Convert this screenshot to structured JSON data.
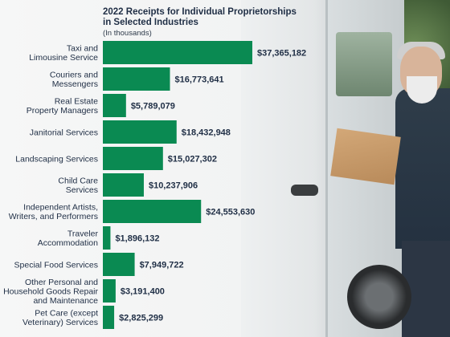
{
  "chart_data": {
    "type": "bar",
    "orientation": "horizontal",
    "title_lines": [
      "2022 Receipts for Individual Proprietorships",
      "in Selected Industries"
    ],
    "subtitle": "(In thousands)",
    "bar_color": "#0a8a52",
    "categories": [
      {
        "label_lines": [
          "Taxi and",
          "Limousine Service"
        ],
        "value": 37365182,
        "value_label": "$37,365,182"
      },
      {
        "label_lines": [
          "Couriers and",
          "Messengers"
        ],
        "value": 16773641,
        "value_label": "$16,773,641"
      },
      {
        "label_lines": [
          "Real Estate",
          "Property Managers"
        ],
        "value": 5789079,
        "value_label": "$5,789,079"
      },
      {
        "label_lines": [
          "Janitorial Services"
        ],
        "value": 18432948,
        "value_label": "$18,432,948"
      },
      {
        "label_lines": [
          "Landscaping Services"
        ],
        "value": 15027302,
        "value_label": "$15,027,302"
      },
      {
        "label_lines": [
          "Child Care",
          "Services"
        ],
        "value": 10237906,
        "value_label": "$10,237,906"
      },
      {
        "label_lines": [
          "Independent Artists,",
          "Writers, and Performers"
        ],
        "value": 24553630,
        "value_label": "$24,553,630"
      },
      {
        "label_lines": [
          "Traveler",
          "Accommodation"
        ],
        "value": 1896132,
        "value_label": "$1,896,132"
      },
      {
        "label_lines": [
          "Special Food Services"
        ],
        "value": 7949722,
        "value_label": "$7,949,722"
      },
      {
        "label_lines": [
          "Other Personal and",
          "Household Goods Repair",
          "and Maintenance"
        ],
        "value": 3191400,
        "value_label": "$3,191,400"
      },
      {
        "label_lines": [
          "Pet Care (except",
          "Veterinary) Services"
        ],
        "value": 2825299,
        "value_label": "$2,825,299"
      }
    ]
  }
}
